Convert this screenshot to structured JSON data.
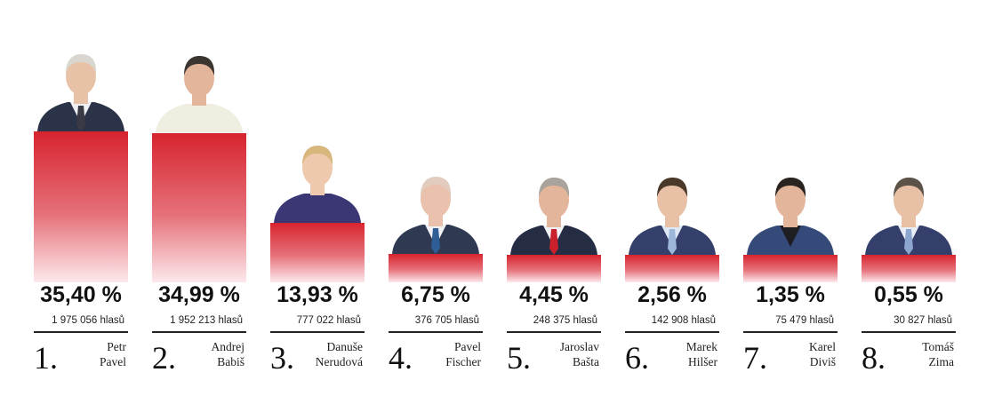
{
  "chart_data": {
    "type": "bar",
    "unit": "%",
    "ylim": [
      0,
      35.4
    ],
    "candidates": [
      {
        "rank": "1.",
        "first_name": "Petr",
        "last_name": "Pavel",
        "value": 35.4,
        "value_label": "35,40 %",
        "votes_label": "1 975 056 hlasů",
        "suit": "#2a3347",
        "shirt": "#eef0f3",
        "tie": "#3a3a44",
        "hair": "#d9d6d0",
        "skin": "#e7c2a6"
      },
      {
        "rank": "2.",
        "first_name": "Andrej",
        "last_name": "Babiš",
        "value": 34.99,
        "value_label": "34,99 %",
        "votes_label": "1 952 213 hlasů",
        "suit": "#efeee0",
        "shirt": "#efeee0",
        "tie": "",
        "hair": "#3b3630",
        "skin": "#e3b59a"
      },
      {
        "rank": "3.",
        "first_name": "Danuše",
        "last_name": "Nerudová",
        "value": 13.93,
        "value_label": "13,93 %",
        "votes_label": "777 022 hlasů",
        "suit": "#3a3774",
        "shirt": "#3a3774",
        "tie": "",
        "hair": "#d8b77c",
        "skin": "#efc9ad"
      },
      {
        "rank": "4.",
        "first_name": "Pavel",
        "last_name": "Fischer",
        "value": 6.75,
        "value_label": "6,75 %",
        "votes_label": "376 705 hlasů",
        "suit": "#2f3a52",
        "shirt": "#f1f2f5",
        "tie": "#2f5d96",
        "hair": "#e2ccc0",
        "skin": "#e9c1ac"
      },
      {
        "rank": "5.",
        "first_name": "Jaroslav",
        "last_name": "Bašta",
        "value": 4.45,
        "value_label": "4,45 %",
        "votes_label": "248 375 hlasů",
        "suit": "#242d44",
        "shirt": "#f1f2f5",
        "tie": "#c9202b",
        "hair": "#a8a39b",
        "skin": "#e3b59a"
      },
      {
        "rank": "6.",
        "first_name": "Marek",
        "last_name": "Hilšer",
        "value": 2.56,
        "value_label": "2,56 %",
        "votes_label": "142 908 hlasů",
        "suit": "#34406b",
        "shirt": "#dfe7f4",
        "tie": "#9bb7d9",
        "hair": "#4a3828",
        "skin": "#e7c0a6"
      },
      {
        "rank": "7.",
        "first_name": "Karel",
        "last_name": "Diviš",
        "value": 1.35,
        "value_label": "1,35 %",
        "votes_label": "75 479 hlasů",
        "suit": "#354a78",
        "shirt": "#1d1d22",
        "tie": "",
        "hair": "#2a2420",
        "skin": "#e3b59a"
      },
      {
        "rank": "8.",
        "first_name": "Tomáš",
        "last_name": "Zima",
        "value": 0.55,
        "value_label": "0,55 %",
        "votes_label": "30 827 hlasů",
        "suit": "#34406b",
        "shirt": "#e9eef6",
        "tie": "#8ba6cf",
        "hair": "#5b5248",
        "skin": "#e7c0a6"
      }
    ]
  }
}
